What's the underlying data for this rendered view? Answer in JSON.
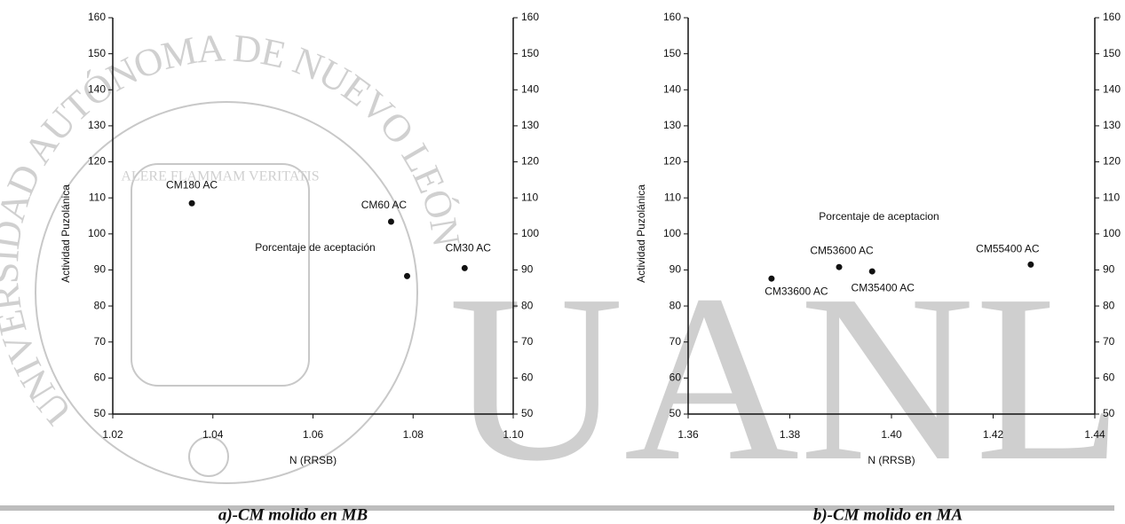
{
  "chart_data": [
    {
      "type": "scatter",
      "x_label": "N (RRSB)",
      "y_label": "Actividad Puzolánica",
      "annotation": "Porcentaje de aceptación",
      "caption": "a)-CM molido en MB",
      "color": "#111111",
      "xlim": [
        1.02,
        1.1
      ],
      "xticks": [
        1.02,
        1.04,
        1.06,
        1.08,
        {
          "value": 1.1,
          "label": "1.10"
        }
      ],
      "ylim": [
        50,
        160
      ],
      "yticks": [
        50,
        60,
        70,
        80,
        90,
        100,
        110,
        120,
        130,
        140,
        150,
        160
      ],
      "y2lim": [
        50,
        160
      ],
      "y2ticks": [
        50,
        60,
        70,
        80,
        90,
        100,
        110,
        120,
        130,
        140,
        150,
        160
      ],
      "x": [
        1.0358,
        1.0756,
        1.0788,
        1.0903
      ],
      "values": [
        108.5,
        103.4,
        88.3,
        90.5
      ],
      "point_labels": [
        "CM180 AC",
        "CM60 AC",
        null,
        "CM30 AC"
      ]
    },
    {
      "type": "scatter",
      "x_label": "N (RRSB)",
      "y_label": "Actividad Puzolánica",
      "annotation": "Porcentaje de aceptacion",
      "caption": "b)-CM molido en MA",
      "color": "#111111",
      "xlim": [
        1.36,
        1.44
      ],
      "xticks": [
        1.36,
        1.38,
        {
          "value": 1.4,
          "label": "1.40"
        },
        1.42,
        1.44
      ],
      "ylim": [
        50,
        160
      ],
      "yticks": [
        50,
        60,
        70,
        80,
        90,
        100,
        110,
        120,
        130,
        140,
        150,
        160
      ],
      "y2lim": [
        50,
        160
      ],
      "y2ticks": [
        50,
        60,
        70,
        80,
        90,
        100,
        110,
        120,
        130,
        140,
        150,
        160
      ],
      "x": [
        1.3764,
        1.3897,
        1.3962,
        1.4274
      ],
      "values": [
        87.6,
        90.8,
        89.6,
        91.5
      ],
      "point_labels": [
        "CM33600 AC",
        "CM53600 AC",
        "CM35400 AC",
        "CM55400 AC"
      ]
    }
  ],
  "watermark": {
    "letters": "UANL",
    "ring": "UNIVERSIDAD AUTÓNOMA DE NUEVO LEÓN",
    "motto": "ALERE FLAMMAM VERITATIS"
  }
}
